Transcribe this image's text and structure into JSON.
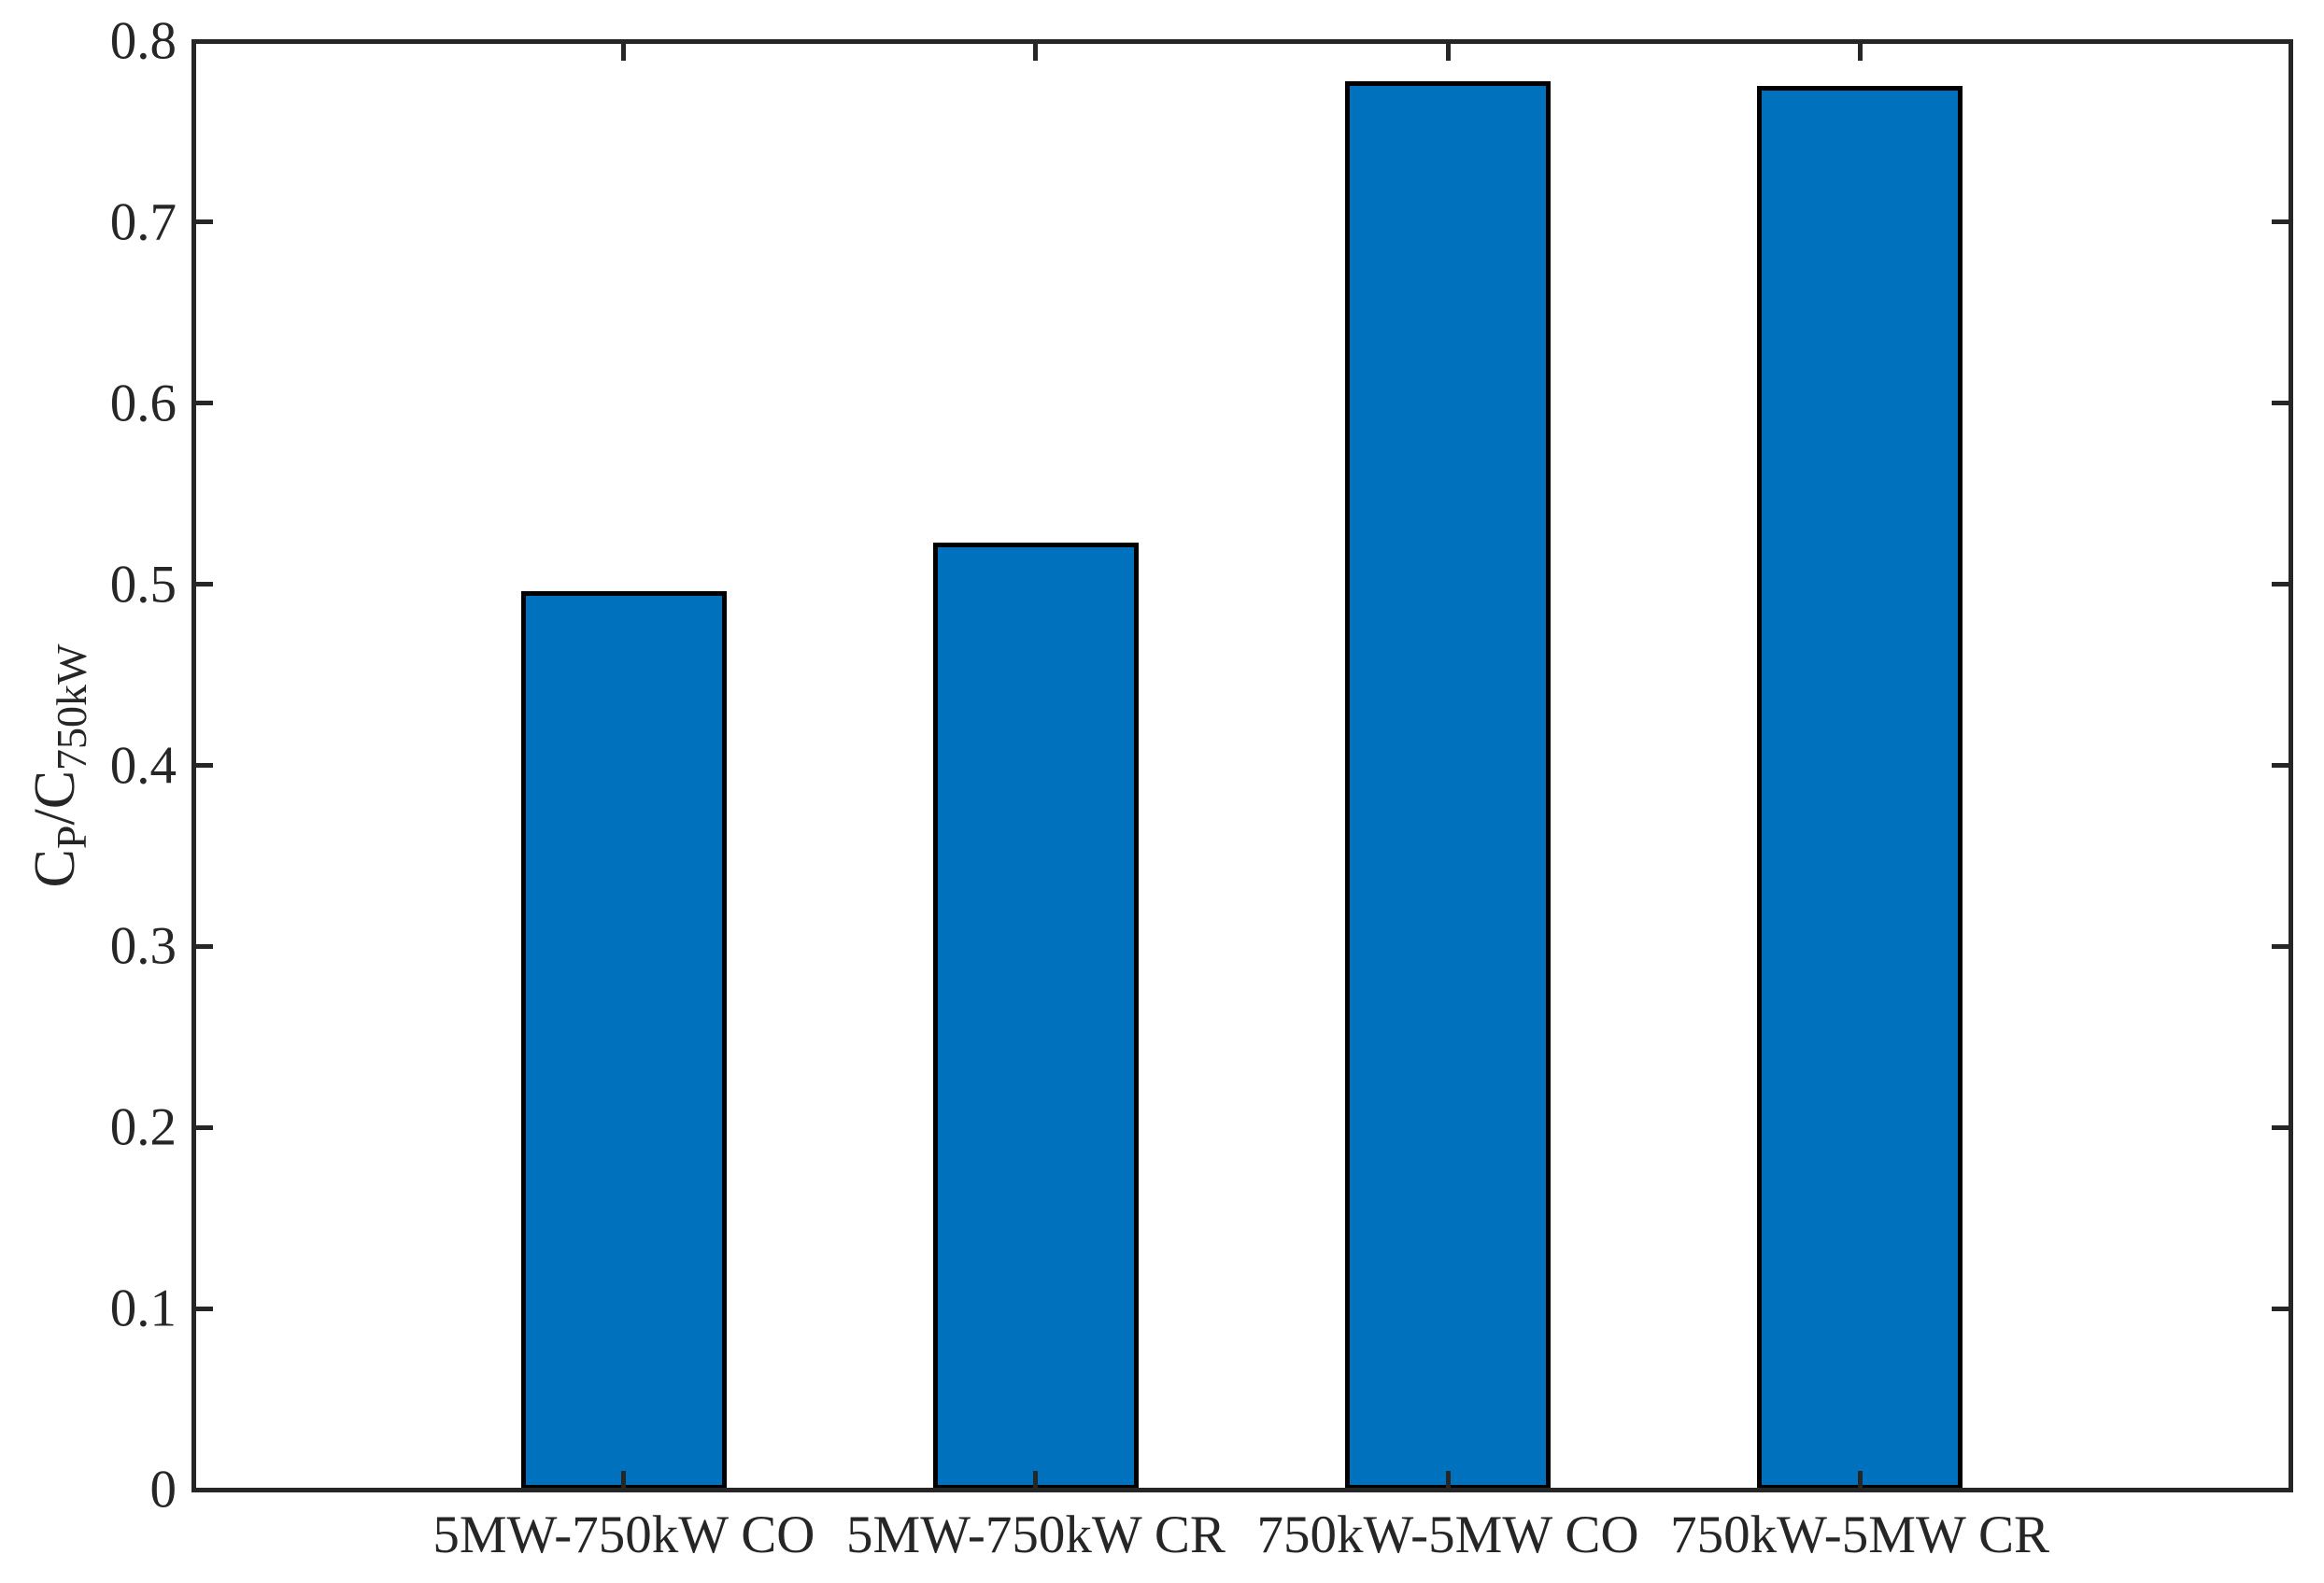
{
  "figure": {
    "background": "#ffffff"
  },
  "chart_data": {
    "type": "bar",
    "title": "",
    "categories": [
      "5MW-750kW CO",
      "5MW-750kW CR",
      "750kW-5MW CO",
      "750kW-5MW CR"
    ],
    "values": [
      0.496,
      0.523,
      0.778,
      0.775
    ],
    "x_positions": [
      1,
      2,
      3,
      4
    ],
    "xlabel": "",
    "ylabel": "C_P/C_750kW",
    "ylabel_parts": [
      {
        "text": "C",
        "sub": false
      },
      {
        "text": "P",
        "sub": true
      },
      {
        "text": "/C",
        "sub": false
      },
      {
        "text": "750kW",
        "sub": true
      }
    ],
    "ylim": [
      0,
      0.8
    ],
    "xlim": [
      -0.045,
      5.045
    ],
    "yticks": [
      0,
      0.1,
      0.2,
      0.3,
      0.4,
      0.5,
      0.6,
      0.7,
      0.8
    ],
    "ytick_labels": [
      "0",
      "0.1",
      "0.2",
      "0.3",
      "0.4",
      "0.5",
      "0.6",
      "0.7",
      "0.8"
    ],
    "grid": false,
    "legend": null,
    "box": true,
    "tick_direction": "in",
    "bar_width_fraction": 0.5,
    "bar_color": "#0072BD",
    "bar_edge_color": "#000000",
    "axis_color": "#262626"
  }
}
